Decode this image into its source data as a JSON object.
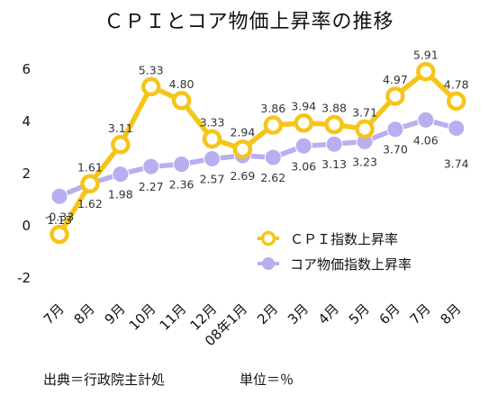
{
  "title": "ＣＰＩとコア物価上昇率の推移",
  "footnotes": {
    "source": "出典＝行政院主計処",
    "unit": "単位＝％"
  },
  "colors": {
    "cpi": "#f5c518",
    "core": "#b9aef0",
    "background": "#ffffff"
  },
  "chart_data": {
    "type": "line",
    "categories": [
      "7月",
      "8月",
      "9月",
      "10月",
      "11月",
      "12月",
      "08年1月",
      "2月",
      "3月",
      "4月",
      "5月",
      "6月",
      "7月",
      "8月"
    ],
    "series": [
      {
        "name": "ＣＰＩ指数上昇率",
        "values": [
          -0.33,
          1.61,
          3.11,
          5.33,
          4.8,
          3.33,
          2.94,
          3.86,
          3.94,
          3.88,
          3.71,
          4.97,
          5.91,
          4.78
        ]
      },
      {
        "name": "コア物価指数上昇率",
        "values": [
          1.13,
          1.62,
          1.98,
          2.27,
          2.36,
          2.57,
          2.69,
          2.62,
          3.06,
          3.13,
          3.23,
          3.7,
          4.06,
          3.74
        ]
      }
    ],
    "y_ticks": [
      -2,
      0,
      2,
      4,
      6
    ],
    "ylim": [
      -2,
      6.6
    ],
    "grid": false,
    "legend_position": "bottom-right"
  }
}
